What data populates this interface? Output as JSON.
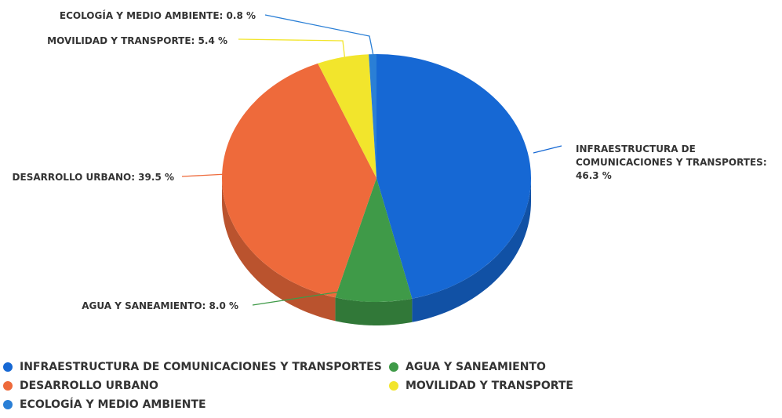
{
  "chart_data": {
    "type": "pie",
    "title": "",
    "series": [
      {
        "name": "INFRAESTRUCTURA DE COMUNICACIONES Y TRANSPORTES",
        "value": 46.3,
        "color": "#1668d4",
        "label_lines": [
          "INFRAESTRUCTURA DE",
          "COMUNICACIONES Y TRANSPORTES:",
          "46.3 %"
        ]
      },
      {
        "name": "AGUA Y SANEAMIENTO",
        "value": 8.0,
        "color": "#3f9a48",
        "label_lines": [
          "AGUA Y SANEAMIENTO: 8.0 %"
        ]
      },
      {
        "name": "DESARROLLO URBANO",
        "value": 39.5,
        "color": "#ee6a3b",
        "label_lines": [
          "DESARROLLO URBANO: 39.5 %"
        ]
      },
      {
        "name": "MOVILIDAD Y TRANSPORTE",
        "value": 5.4,
        "color": "#f2e52c",
        "label_lines": [
          "MOVILIDAD Y TRANSPORTE: 5.4 %"
        ]
      },
      {
        "name": "ECOLOGÍA Y MEDIO AMBIENTE",
        "value": 0.8,
        "color": "#2a7fd6",
        "label_lines": [
          "ECOLOGÍA Y MEDIO AMBIENTE: 0.8 %"
        ]
      }
    ],
    "legend": {
      "position": "bottom",
      "order": [
        "INFRAESTRUCTURA DE COMUNICACIONES Y TRANSPORTES",
        "AGUA Y SANEAMIENTO",
        "DESARROLLO URBANO",
        "MOVILIDAD Y TRANSPORTE",
        "ECOLOGÍA Y MEDIO AMBIENTE"
      ]
    }
  }
}
